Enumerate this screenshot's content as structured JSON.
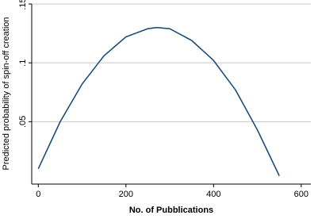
{
  "chart_data": {
    "type": "line",
    "xlabel": "No. of Pubblications",
    "ylabel": "Predicted probability of spin-off creation",
    "x": [
      0,
      50,
      100,
      150,
      200,
      250,
      270,
      300,
      350,
      400,
      450,
      500,
      550
    ],
    "series": [
      {
        "color": "#1f4e79",
        "values": [
          0.01,
          0.05,
          0.082,
          0.106,
          0.122,
          0.129,
          0.13,
          0.129,
          0.119,
          0.102,
          0.077,
          0.043,
          0.004
        ]
      }
    ],
    "xlim": [
      -15,
      622
    ],
    "xticks": [
      0,
      200,
      400,
      600
    ],
    "ylim": [
      -0.003,
      0.15
    ],
    "yticks": [
      {
        "value": 0.05,
        "label": ".05"
      },
      {
        "value": 0.1,
        "label": ".1"
      },
      {
        "value": 0.15,
        "label": ".15"
      }
    ],
    "grid": true
  }
}
